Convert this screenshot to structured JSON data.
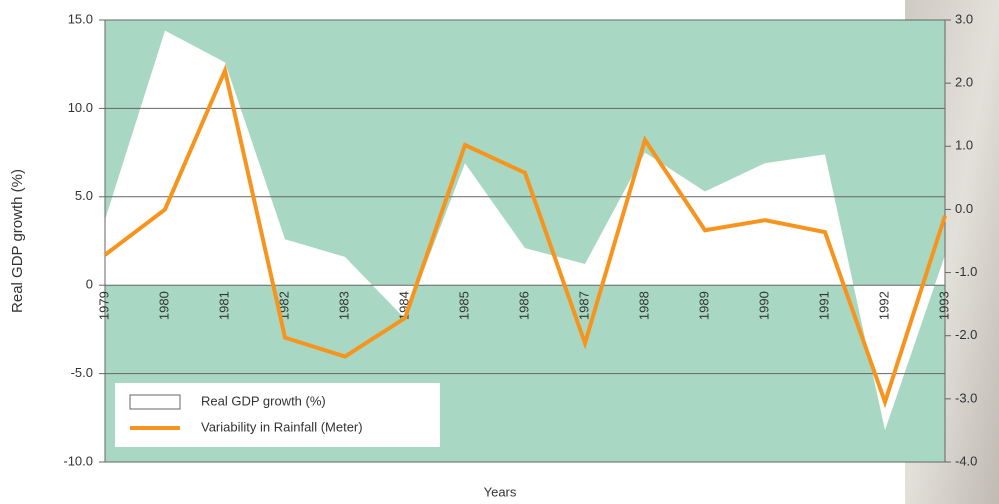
{
  "chart_data": {
    "type": "line",
    "x_label": "Years",
    "y_label": "Real GDP growth (%)",
    "categories": [
      "1979",
      "1980",
      "1981",
      "1982",
      "1983",
      "1984",
      "1985",
      "1986",
      "1987",
      "1988",
      "1989",
      "1990",
      "1991",
      "1992",
      "1993"
    ],
    "series": [
      {
        "name": "Real GDP growth (%)",
        "color": "#ffffff",
        "area": true,
        "values": [
          3.7,
          14.4,
          12.6,
          2.6,
          1.6,
          -1.9,
          6.9,
          2.1,
          1.2,
          7.5,
          5.3,
          6.9,
          7.4,
          -8.2,
          1.7
        ]
      },
      {
        "name": "Variability in Rainfall (Meter)",
        "color": "#f7941d",
        "axis": "y2",
        "values": [
          -0.72,
          0.0,
          2.2,
          -2.03,
          -2.33,
          -1.72,
          1.02,
          0.58,
          -2.12,
          1.1,
          -0.33,
          -0.17,
          -0.36,
          -3.05,
          -0.1
        ]
      }
    ],
    "ylim": [
      -10,
      15
    ],
    "yticks": [
      {
        "value": -10,
        "label": "-10.0"
      },
      {
        "value": -5,
        "label": "-5.0"
      },
      0,
      {
        "value": 5,
        "label": "5.0"
      },
      {
        "value": 10,
        "label": "10.0"
      },
      {
        "value": 15,
        "label": "15.0"
      }
    ],
    "y2lim": [
      -4,
      3
    ],
    "y2ticks": [
      {
        "value": -4,
        "label": "-4.0"
      },
      {
        "value": -3,
        "label": "-3.0"
      },
      {
        "value": -2,
        "label": "-2.0"
      },
      {
        "value": -1,
        "label": "-1.0"
      },
      {
        "value": 0,
        "label": "0.0"
      },
      {
        "value": 1,
        "label": "1.0"
      },
      {
        "value": 2,
        "label": "2.0"
      },
      {
        "value": 3,
        "label": "3.0"
      }
    ],
    "grid": true,
    "plot_background": "#a8d8c3",
    "legend": "lower left"
  }
}
